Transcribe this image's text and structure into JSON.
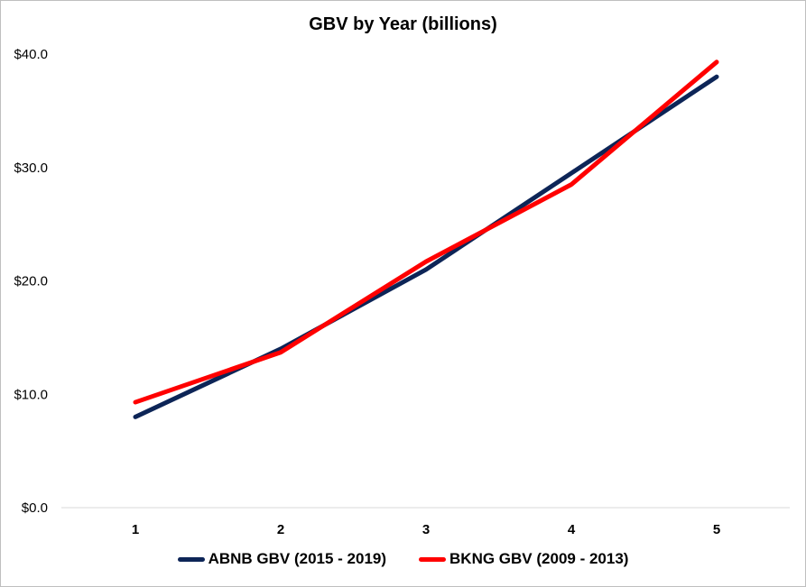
{
  "chart_data": {
    "type": "line",
    "title": "GBV by Year (billions)",
    "xlabel": "",
    "ylabel": "",
    "x": [
      "1",
      "2",
      "3",
      "4",
      "5"
    ],
    "ylim": [
      0,
      40
    ],
    "yticks": [
      "$0.0",
      "$10.0",
      "$20.0",
      "$30.0",
      "$40.0"
    ],
    "grid": "horizontal",
    "legend_position": "bottom",
    "series": [
      {
        "name": "ABNB GBV (2015 - 2019)",
        "color": "#0d2557",
        "values": [
          8.0,
          14.0,
          21.0,
          29.5,
          38.0
        ]
      },
      {
        "name": "BKNG GBV (2009 - 2013)",
        "color": "#ff0000",
        "values": [
          9.3,
          13.7,
          21.7,
          28.5,
          39.3
        ]
      }
    ]
  }
}
